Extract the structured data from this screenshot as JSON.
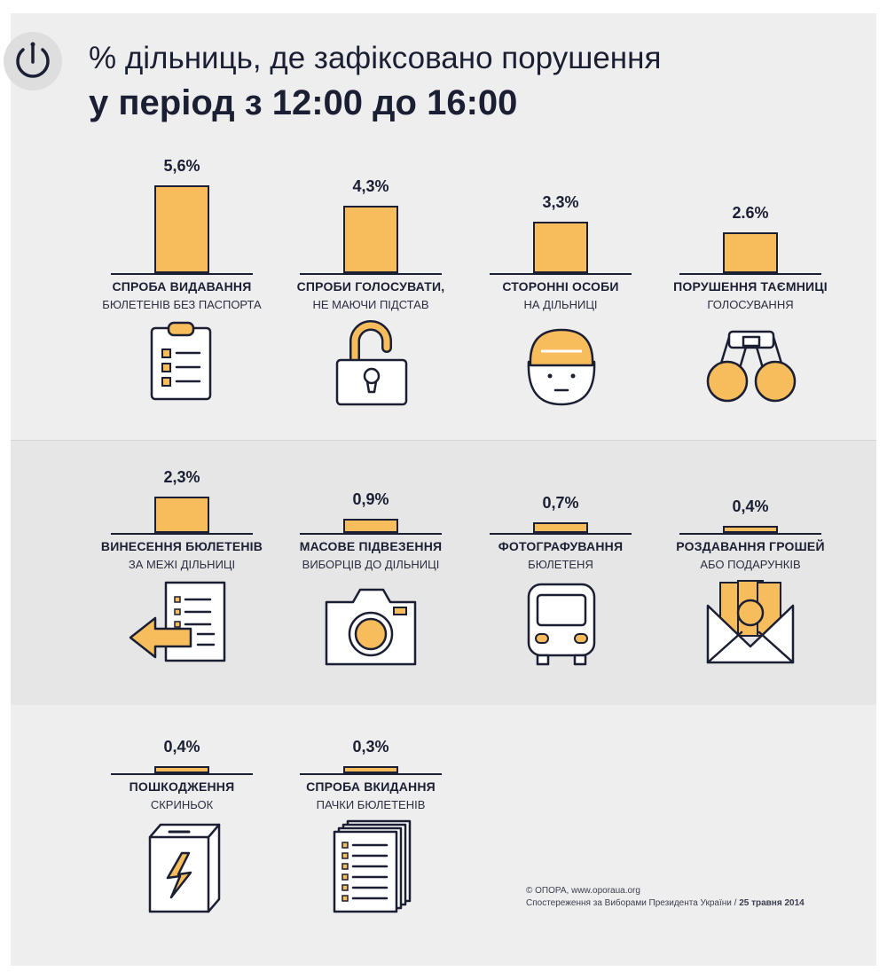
{
  "header": {
    "title_line1": "% дільниць, де зафіксовано порушення",
    "title_line2": "у період з 12:00 до 16:00",
    "logo_icon": "power-icon"
  },
  "colors": {
    "bar": "#f7bd5c",
    "ink": "#1b1f33"
  },
  "chart_data": {
    "type": "bar",
    "title": "% дільниць, де зафіксовано порушення у період з 12:00 до 16:00",
    "unit": "%",
    "items": [
      {
        "value": 5.6,
        "label": "5,6%",
        "line1": "СПРОБА ВИДАВАННЯ",
        "line2": "БЮЛЕТЕНІВ БЕЗ ПАСПОРТА",
        "icon": "clipboard-icon"
      },
      {
        "value": 4.3,
        "label": "4,3%",
        "line1": "СПРОБИ ГОЛОСУВАТИ,",
        "line2": "НЕ МАЮЧИ ПІДСТАВ",
        "icon": "open-padlock-icon"
      },
      {
        "value": 3.3,
        "label": "3,3%",
        "line1": "СТОРОННІ ОСОБИ",
        "line2": "НА ДІЛЬНИЦІ",
        "icon": "person-in-cap-icon"
      },
      {
        "value": 2.6,
        "label": "2.6%",
        "line1": "ПОРУШЕННЯ ТАЄМНИЦІ",
        "line2": "ГОЛОСУВАННЯ",
        "icon": "binoculars-icon"
      },
      {
        "value": 2.3,
        "label": "2,3%",
        "line1": "ВИНЕСЕННЯ БЮЛЕТЕНІВ",
        "line2": "ЗА МЕЖІ ДІЛЬНИЦІ",
        "icon": "document-arrow-out-icon"
      },
      {
        "value": 0.9,
        "label": "0,9%",
        "line1": "МАСОВЕ ПІДВЕЗЕННЯ",
        "line2": "ВИБОРЦІВ ДО ДІЛЬНИЦІ",
        "icon": "camera-icon"
      },
      {
        "value": 0.7,
        "label": "0,7%",
        "line1": "ФОТОГРАФУВАННЯ",
        "line2": "БЮЛЕТЕНЯ",
        "icon": "bus-icon"
      },
      {
        "value": 0.4,
        "label": "0,4%",
        "line1": "РОЗДАВАННЯ ГРОШЕЙ",
        "line2": "АБО ПОДАРУНКІВ",
        "icon": "money-envelope-icon"
      },
      {
        "value": 0.4,
        "label": "0,4%",
        "line1": "ПОШКОДЖЕННЯ",
        "line2": "СКРИНЬОК",
        "icon": "damaged-box-icon"
      },
      {
        "value": 0.3,
        "label": "0,3%",
        "line1": "СПРОБА ВКИДАННЯ",
        "line2": "ПАЧКИ БЮЛЕТЕНІВ",
        "icon": "ballot-stack-icon"
      }
    ]
  },
  "footer": {
    "credit_line1": "© ОПОРА, www.oporaua.org",
    "credit_line2": "Спостереження за Виборами Президента України /",
    "credit_date": "25 травня 2014"
  }
}
